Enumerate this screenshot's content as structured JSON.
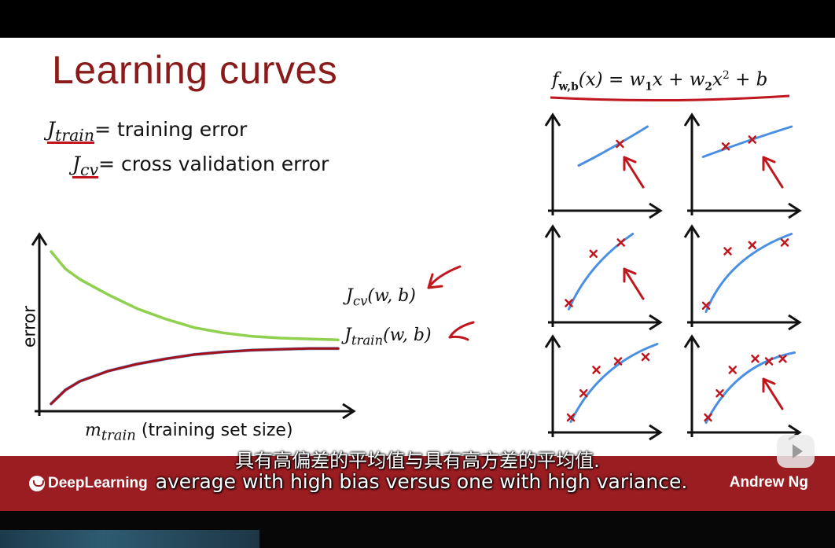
{
  "slide": {
    "title": "Learning curves",
    "defs": {
      "train_sub": "train",
      "train_text": "= training error",
      "cv_sub": "cv",
      "cv_text": "= cross validation error"
    },
    "formula": {
      "prefix": "f",
      "sub": "w,b",
      "paren": "(x) = w",
      "w1_sub": "1",
      "mid1": "x + w",
      "w2_sub": "2",
      "mid2": "x",
      "sq": "2",
      "tail": " + b"
    },
    "colors": {
      "title": "#8b1a1a",
      "annotation_red": "#c0161d",
      "cv_curve": "#8fd14f",
      "train_curve": "#a3121c",
      "fit_curve": "#4a90e2",
      "bar": "#9a1d22"
    }
  },
  "chart_data": [
    {
      "type": "line",
      "title": "",
      "xlabel_symbol": "m",
      "xlabel_sub": "train",
      "xlabel_text": "(training set size)",
      "ylabel": "error",
      "ticks": "none",
      "series": [
        {
          "name": "Jcv(w,b)",
          "label_sub": "cv",
          "label_args": "(w, b)",
          "color": "#8fd14f",
          "x": [
            0,
            0.05,
            0.1,
            0.2,
            0.3,
            0.4,
            0.5,
            0.6,
            0.7,
            0.8,
            0.9,
            1.0
          ],
          "y": [
            0.9,
            0.8,
            0.74,
            0.65,
            0.57,
            0.51,
            0.46,
            0.43,
            0.41,
            0.4,
            0.395,
            0.39
          ]
        },
        {
          "name": "Jtrain(w,b)",
          "label_sub": "train",
          "label_args": "(w, b)",
          "color": "#a3121c",
          "x": [
            0,
            0.05,
            0.1,
            0.2,
            0.3,
            0.4,
            0.5,
            0.6,
            0.7,
            0.8,
            0.9,
            1.0
          ],
          "y": [
            0.02,
            0.1,
            0.15,
            0.21,
            0.25,
            0.28,
            0.305,
            0.32,
            0.33,
            0.335,
            0.34,
            0.34
          ]
        }
      ]
    },
    {
      "type": "scatter",
      "panels": [
        {
          "name": "panel-1",
          "points": [
            [
              0.62,
              0.7
            ]
          ],
          "curve": [
            [
              0.2,
              0.45
            ],
            [
              0.5,
              0.62
            ],
            [
              0.9,
              0.9
            ]
          ],
          "arrow": true
        },
        {
          "name": "panel-2",
          "points": [
            [
              0.28,
              0.67
            ],
            [
              0.55,
              0.75
            ]
          ],
          "curve": [
            [
              0.05,
              0.55
            ],
            [
              0.5,
              0.74
            ],
            [
              0.95,
              0.9
            ]
          ],
          "arrow": true
        },
        {
          "name": "panel-3",
          "points": [
            [
              0.1,
              0.15
            ],
            [
              0.35,
              0.72
            ],
            [
              0.63,
              0.85
            ]
          ],
          "curve": [
            [
              0.1,
              0.08
            ],
            [
              0.3,
              0.6
            ],
            [
              0.75,
              0.95
            ]
          ],
          "arrow": true
        },
        {
          "name": "panel-4",
          "points": [
            [
              0.08,
              0.12
            ],
            [
              0.3,
              0.75
            ],
            [
              0.55,
              0.82
            ],
            [
              0.88,
              0.85
            ]
          ],
          "curve": [
            [
              0.08,
              0.05
            ],
            [
              0.3,
              0.68
            ],
            [
              0.95,
              0.95
            ]
          ],
          "arrow": false
        },
        {
          "name": "panel-5",
          "points": [
            [
              0.12,
              0.1
            ],
            [
              0.25,
              0.38
            ],
            [
              0.38,
              0.65
            ],
            [
              0.6,
              0.75
            ],
            [
              0.88,
              0.8
            ]
          ],
          "curve": [
            [
              0.12,
              0.05
            ],
            [
              0.4,
              0.7
            ],
            [
              1.0,
              0.95
            ]
          ],
          "arrow": false
        },
        {
          "name": "panel-6",
          "points": [
            [
              0.1,
              0.1
            ],
            [
              0.22,
              0.38
            ],
            [
              0.35,
              0.65
            ],
            [
              0.58,
              0.78
            ],
            [
              0.72,
              0.75
            ],
            [
              0.86,
              0.78
            ]
          ],
          "curve": [
            [
              0.08,
              0.04
            ],
            [
              0.38,
              0.72
            ],
            [
              0.98,
              0.85
            ]
          ],
          "arrow": true
        }
      ]
    }
  ],
  "footer": {
    "brand": "DeepLearning",
    "author": "Andrew Ng"
  },
  "subtitles": {
    "cn": "具有高偏差的平均值与具有高方差的平均值.",
    "en": "average with high bias versus one with high variance."
  },
  "controls": {
    "play_icon": "play-icon"
  }
}
